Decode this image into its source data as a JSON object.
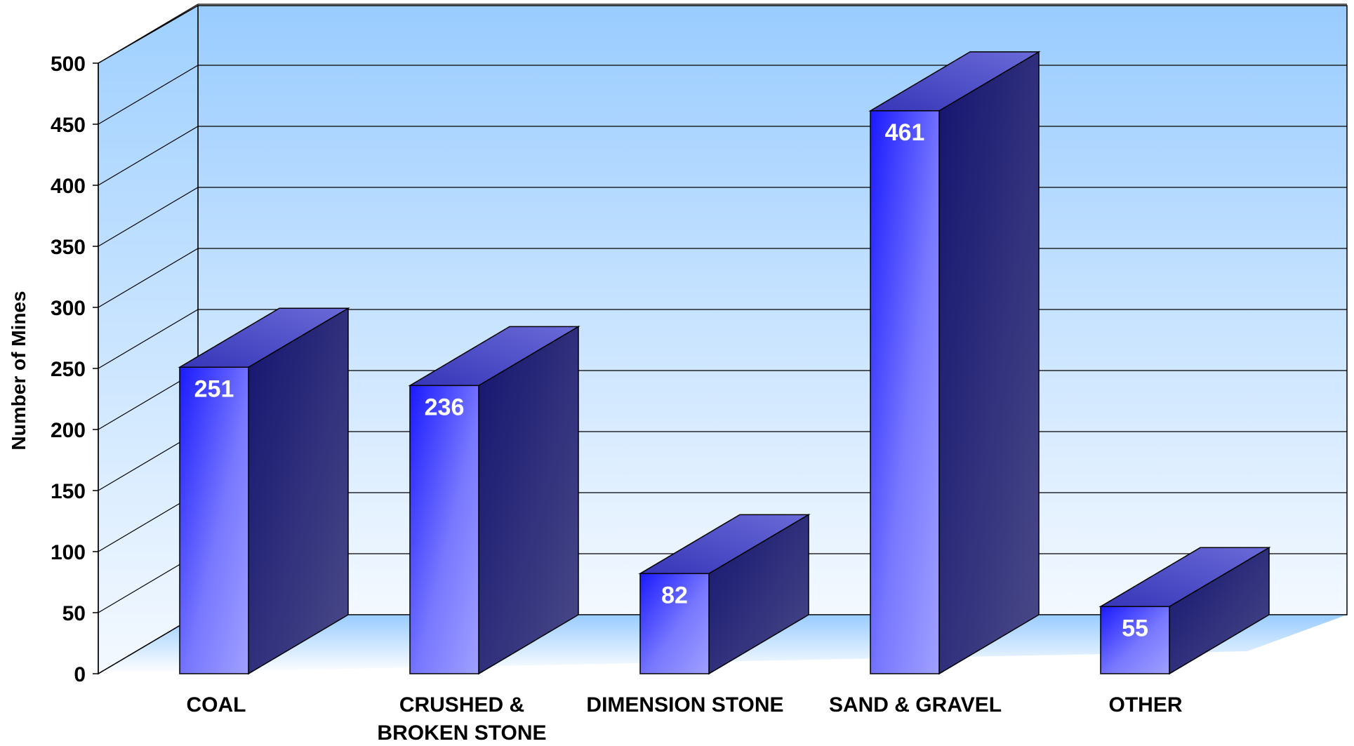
{
  "chart_data": {
    "type": "bar",
    "title": "",
    "xlabel": "",
    "ylabel": "Number of Mines",
    "ylim": [
      0,
      500
    ],
    "yticks": [
      0,
      50,
      100,
      150,
      200,
      250,
      300,
      350,
      400,
      450,
      500
    ],
    "categories": [
      [
        "COAL"
      ],
      [
        "CRUSHED &",
        "BROKEN STONE"
      ],
      [
        "DIMENSION STONE"
      ],
      [
        "SAND & GRAVEL"
      ],
      [
        "OTHER"
      ]
    ],
    "values": [
      251,
      236,
      82,
      461,
      55
    ],
    "data_labels": [
      "251",
      "236",
      "82",
      "461",
      "55"
    ],
    "grid": true,
    "style": "3d-bar",
    "colors": {
      "wall_top": "#99ccff",
      "wall_bottom": "#ffffff",
      "bar_front_light": "#9898ff",
      "bar_front_bright": "#2020ff",
      "bar_side": "#2a2a80",
      "bar_top": "#5050c8"
    }
  }
}
